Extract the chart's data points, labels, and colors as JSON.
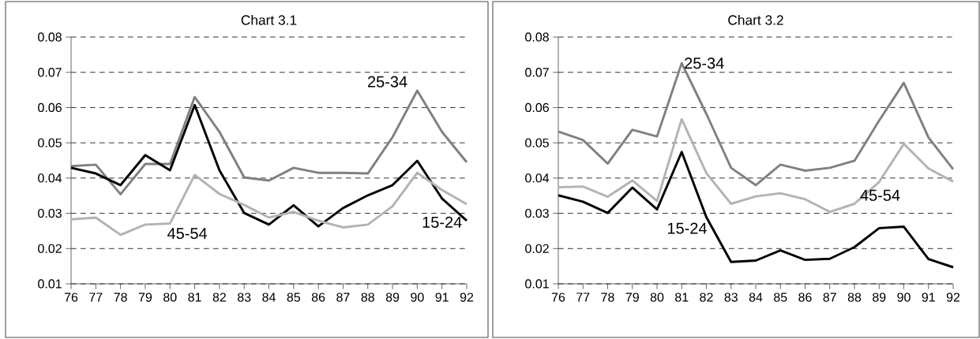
{
  "chart_data": [
    {
      "type": "line",
      "title": "Chart 3.1",
      "categories": [
        "76",
        "77",
        "78",
        "79",
        "80",
        "81",
        "82",
        "83",
        "84",
        "85",
        "86",
        "87",
        "88",
        "89",
        "90",
        "91",
        "92"
      ],
      "ylim": [
        0.01,
        0.08
      ],
      "yticks": [
        0.01,
        0.02,
        0.03,
        0.04,
        0.05,
        0.06,
        0.07,
        0.08
      ],
      "grid": "y",
      "legend": false,
      "marker": "none",
      "line_style": "solid",
      "series": [
        {
          "name": "25-34",
          "color": "#808080",
          "values": [
            0.0434,
            0.0438,
            0.0354,
            0.044,
            0.044,
            0.063,
            0.0531,
            0.0402,
            0.0393,
            0.0429,
            0.0415,
            0.0415,
            0.0413,
            0.0516,
            0.0648,
            0.0531,
            0.0445
          ]
        },
        {
          "name": "15-24",
          "color": "#000000",
          "values": [
            0.0429,
            0.0413,
            0.038,
            0.0465,
            0.0422,
            0.0607,
            0.0422,
            0.0301,
            0.0268,
            0.0323,
            0.0263,
            0.0315,
            0.0351,
            0.038,
            0.0449,
            0.0342,
            0.0279
          ]
        },
        {
          "name": "45-54",
          "color": "#b3b3b3",
          "values": [
            0.0283,
            0.0288,
            0.0239,
            0.0268,
            0.0271,
            0.0409,
            0.0355,
            0.0324,
            0.0288,
            0.0304,
            0.0279,
            0.026,
            0.0268,
            0.032,
            0.0415,
            0.0366,
            0.0326
          ]
        }
      ]
    },
    {
      "type": "line",
      "title": "Chart 3.2",
      "categories": [
        "76",
        "77",
        "78",
        "79",
        "80",
        "81",
        "82",
        "83",
        "84",
        "85",
        "86",
        "87",
        "88",
        "89",
        "90",
        "91",
        "92"
      ],
      "ylim": [
        0.01,
        0.08
      ],
      "yticks": [
        0.01,
        0.02,
        0.03,
        0.04,
        0.05,
        0.06,
        0.07,
        0.08
      ],
      "grid": "y",
      "legend": false,
      "marker": "none",
      "line_style": "solid",
      "series": [
        {
          "name": "25-34",
          "color": "#808080",
          "values": [
            0.0532,
            0.0508,
            0.0441,
            0.0537,
            0.0518,
            0.0726,
            0.0582,
            0.0429,
            0.038,
            0.0438,
            0.0421,
            0.0429,
            0.0449,
            0.0563,
            0.067,
            0.0515,
            0.0425
          ]
        },
        {
          "name": "45-54",
          "color": "#b3b3b3",
          "values": [
            0.0374,
            0.0376,
            0.0347,
            0.0393,
            0.0335,
            0.0567,
            0.0414,
            0.0327,
            0.0348,
            0.0357,
            0.034,
            0.0304,
            0.0327,
            0.0389,
            0.0497,
            0.0427,
            0.039
          ]
        },
        {
          "name": "15-24",
          "color": "#000000",
          "values": [
            0.0351,
            0.0333,
            0.0301,
            0.0373,
            0.0311,
            0.0474,
            0.0289,
            0.0162,
            0.0166,
            0.0195,
            0.0168,
            0.0171,
            0.0204,
            0.0258,
            0.0262,
            0.017,
            0.0147
          ]
        }
      ]
    }
  ]
}
